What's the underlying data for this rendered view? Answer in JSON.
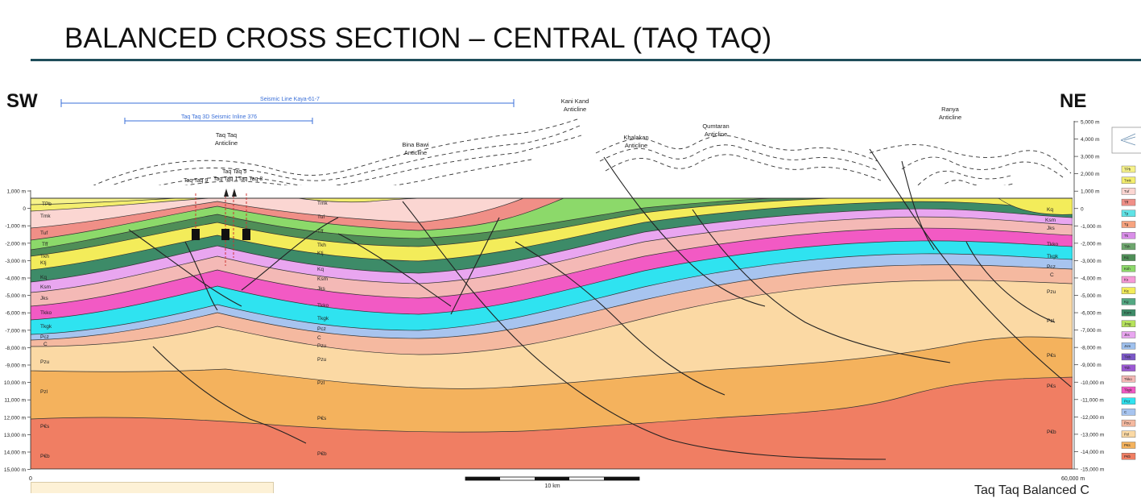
{
  "title": "BALANCED CROSS SECTION – CENTRAL (TAQ TAQ)",
  "directions": {
    "left": "SW",
    "right": "NE"
  },
  "seismic_lines": [
    {
      "label": "Seismic Line Kaya-61-7"
    },
    {
      "label": "Taq Taq 3D Seismic Inline 376"
    }
  ],
  "structures": [
    {
      "line1": "Taq Taq",
      "line2": "Anticline"
    },
    {
      "line1": "Bina Bawi",
      "line2": "Anticline"
    },
    {
      "line1": "Kani Kand",
      "line2": "Anticline"
    },
    {
      "line1": "Khalakan",
      "line2": "Anticline"
    },
    {
      "line1": "Qumtaran",
      "line2": "Anticline"
    },
    {
      "line1": "Ranya",
      "line2": "Anticline"
    }
  ],
  "wells": [
    "Taq Taq 9",
    "Taq Taq 5",
    "Taq Taq 1",
    "Taq Taq 8"
  ],
  "depth_axis_left": [
    "1,000 m",
    "0",
    "-1,000 m",
    "-2,000 m",
    "-3,000 m",
    "-4,000 m",
    "-5,000 m",
    "-6,000 m",
    "-7,000 m",
    "-8,000 m",
    "-9,000 m",
    "10,000 m",
    "11,000 m",
    "12,000 m",
    "13,000 m",
    "14,000 m",
    "15,000 m"
  ],
  "depth_axis_right": [
    "5,000 m",
    "4,000 m",
    "3,000 m",
    "2,000 m",
    "1,000 m",
    "0",
    "-1,000 m",
    "-2,000 m",
    "-3,000 m",
    "-4,000 m",
    "-5,000 m",
    "-6,000 m",
    "-7,000 m",
    "-8,000 m",
    "-9,000 m",
    "-10,000 m",
    "-11,000 m",
    "-12,000 m",
    "-13,000 m",
    "-14,000 m",
    "-15,000 m"
  ],
  "distance_axis": {
    "start": "0",
    "end": "60,000 m"
  },
  "scale_bar": {
    "label": "10 km"
  },
  "unit_labels_left": [
    "TPb",
    "Tmk",
    "Tuf",
    "Tff",
    "Tkh",
    "Ktj",
    "Kq",
    "Ksm",
    "Jks",
    "Tkko",
    "Tkgk",
    "Pcz",
    "C",
    "Pzu",
    "Pzl",
    "P€s",
    "P€b"
  ],
  "unit_labels_mid": [
    "Tmk",
    "Tuf",
    "Tff",
    "Tkh",
    "Ktj",
    "Kq",
    "Ksm",
    "Jks",
    "Tkko",
    "Tkgk",
    "Pcz",
    "C",
    "Pzu",
    "Pzu",
    "Pzl",
    "P€s",
    "P€b"
  ],
  "unit_labels_right": [
    "Kq",
    "Ksm",
    "Jks",
    "Tkko",
    "Tkgk",
    "Pcz",
    "C",
    "Pzu",
    "Pzl",
    "P€s",
    "P€s",
    "P€b"
  ],
  "legend": [
    {
      "code": "TPb",
      "color": "#f6f28a"
    },
    {
      "code": "Tmk",
      "color": "#f4ee6e"
    },
    {
      "code": "Tuf",
      "color": "#fbd6d2"
    },
    {
      "code": "Tff",
      "color": "#f08f87"
    },
    {
      "code": "Tp",
      "color": "#5fe3e6"
    },
    {
      "code": "Tg",
      "color": "#f7a37f"
    },
    {
      "code": "Tk",
      "color": "#d98ee8"
    },
    {
      "code": "Tkh",
      "color": "#6ea66e"
    },
    {
      "code": "Kq",
      "color": "#4f8e57"
    },
    {
      "code": "Ksh",
      "color": "#8cd96a"
    },
    {
      "code": "Ks",
      "color": "#f59ad7"
    },
    {
      "code": "Kq",
      "color": "#f3ec5a"
    },
    {
      "code": "Kg",
      "color": "#53a883"
    },
    {
      "code": "Ksm",
      "color": "#3d8b68"
    },
    {
      "code": "Jmg",
      "color": "#b6e35b"
    },
    {
      "code": "Jks",
      "color": "#e9a6f0"
    },
    {
      "code": "Jsm",
      "color": "#9fc1ee"
    },
    {
      "code": "Tkib",
      "color": "#7b58c8"
    },
    {
      "code": "Tkh",
      "color": "#9b59d3"
    },
    {
      "code": "Tkko",
      "color": "#f4b9b6"
    },
    {
      "code": "Tkgk",
      "color": "#f25ac4"
    },
    {
      "code": "Pcz",
      "color": "#2fe3f0"
    },
    {
      "code": "C",
      "color": "#a7c4ef"
    },
    {
      "code": "Pzu",
      "color": "#f5b9a0"
    },
    {
      "code": "Pzl",
      "color": "#fbd9a4"
    },
    {
      "code": "P€s",
      "color": "#f4b25d"
    },
    {
      "code": "P€b",
      "color": "#f07e63"
    }
  ],
  "footer": "Taq Taq Balanced C",
  "colors": {
    "title_rule": "#1f4e5a",
    "seismic_line": "#3a6fd8"
  }
}
